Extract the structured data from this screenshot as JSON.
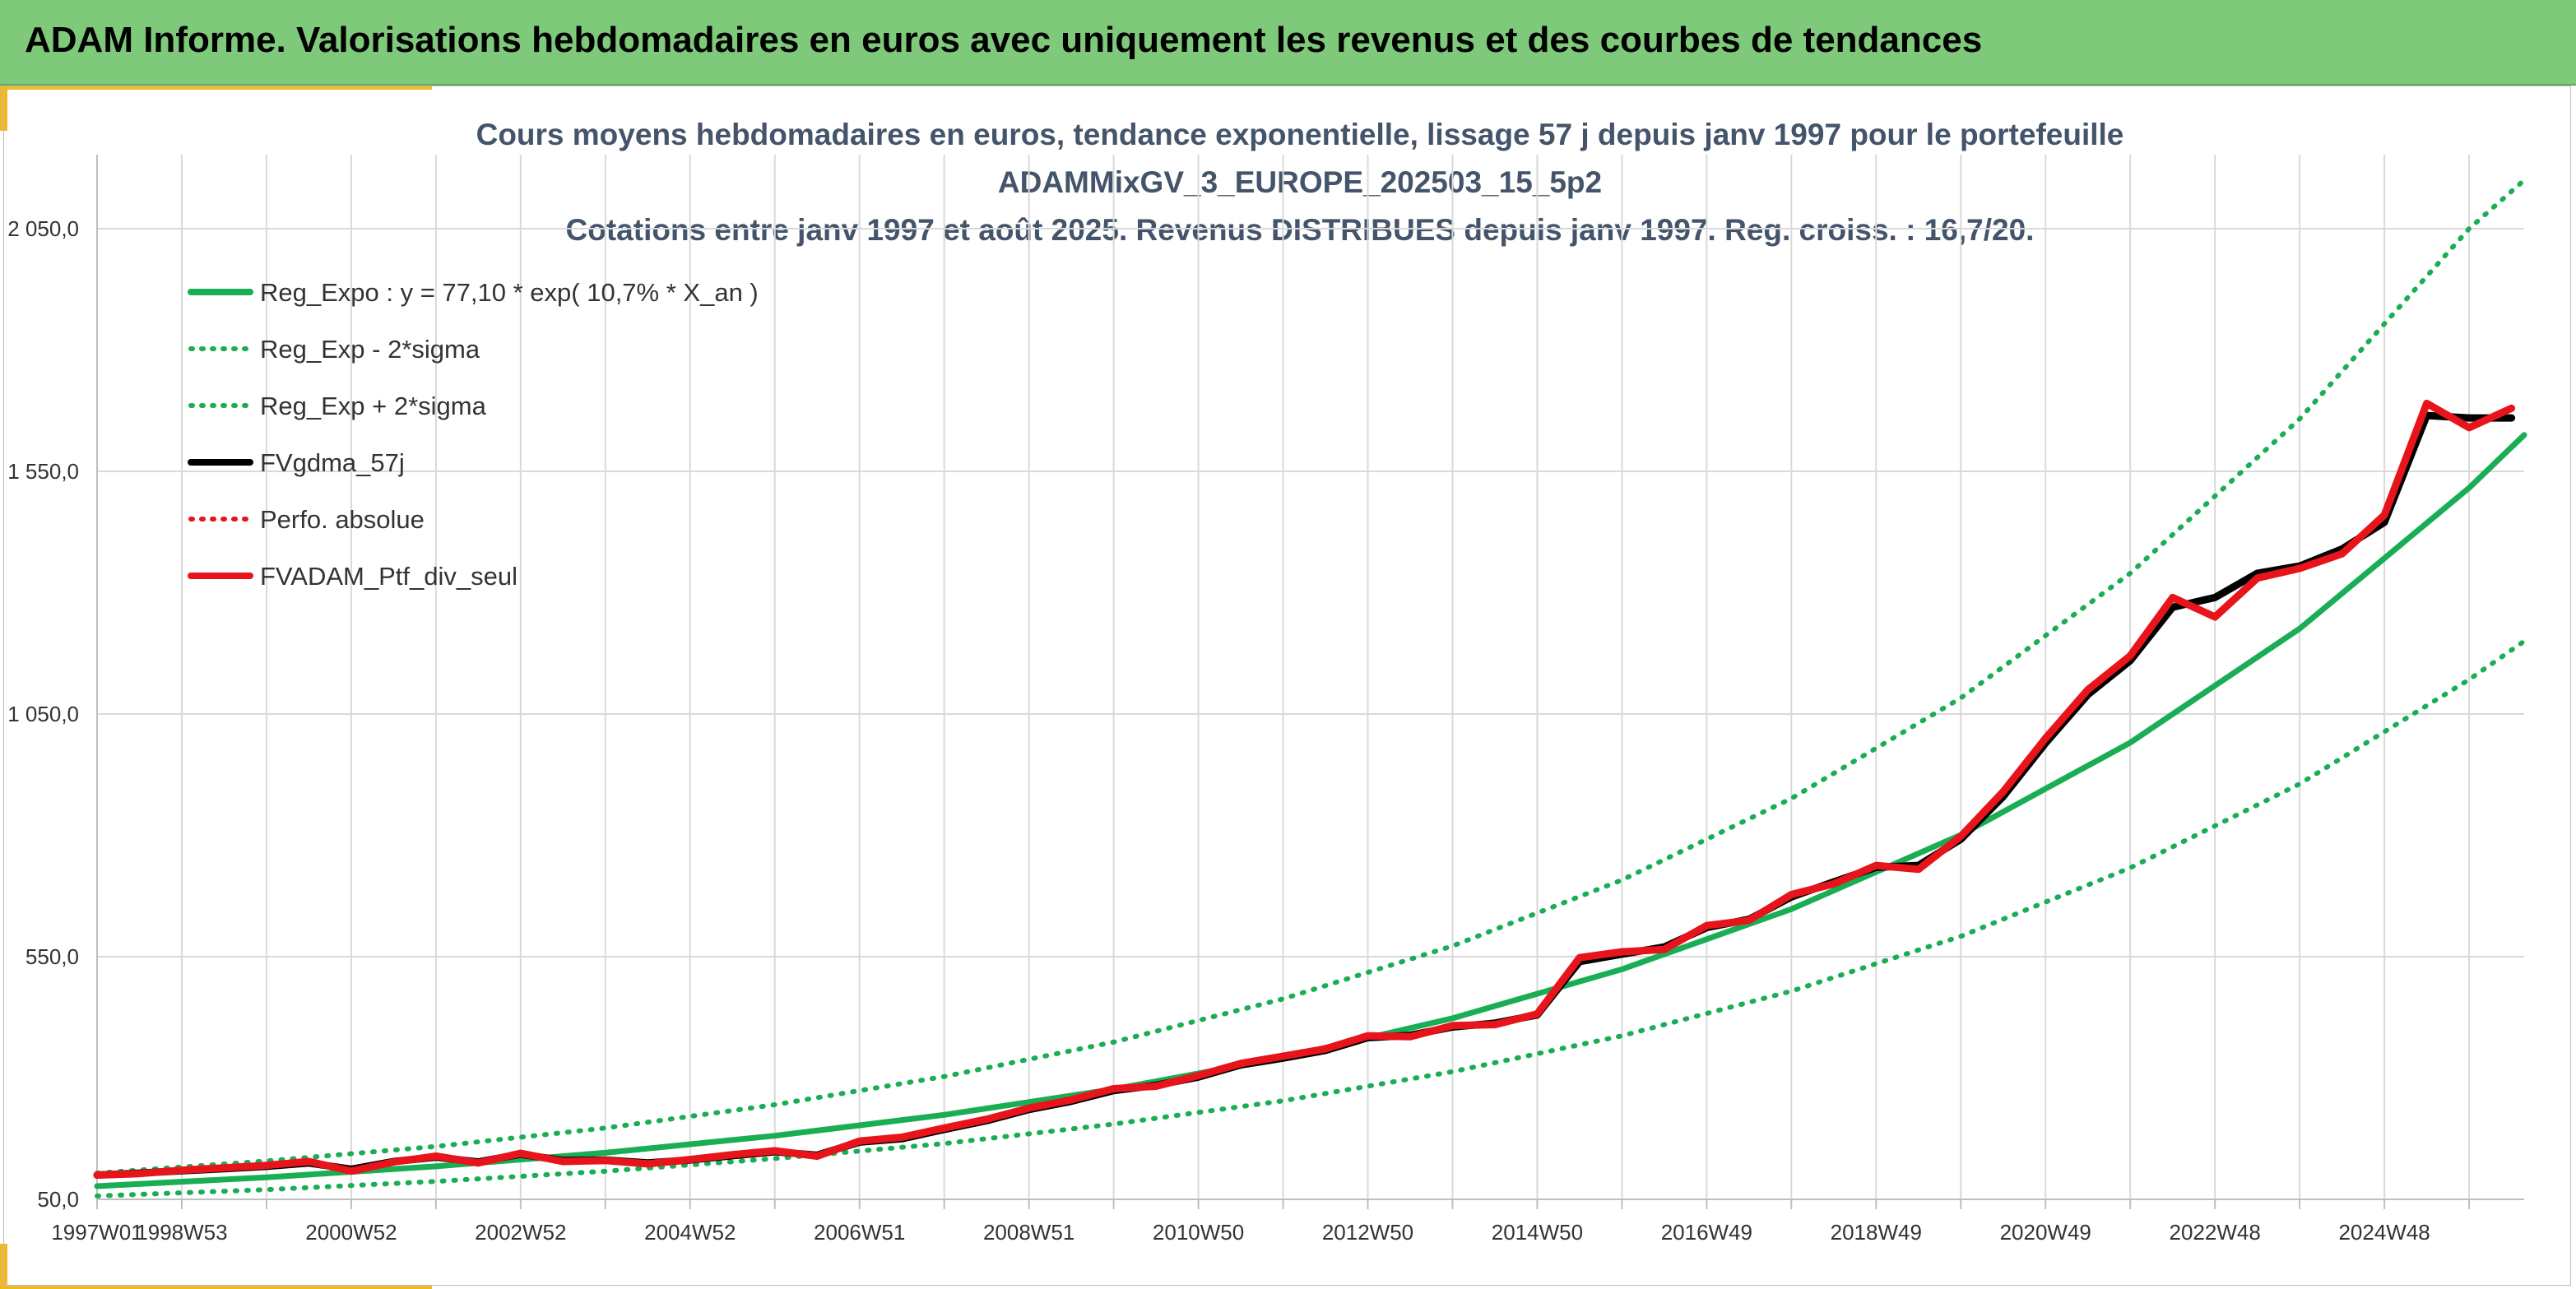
{
  "header": {
    "title": "ADAM Informe. Valorisations hebdomadaires en euros avec uniquement les revenus et des courbes de tendances"
  },
  "colors": {
    "header_bg": "#7fc97a",
    "accent_corner": "#f2b824",
    "trend_green": "#1aae54",
    "ptf_red": "#e8141c",
    "mma_black": "#000000"
  },
  "chart_data": {
    "type": "line",
    "title_lines": [
      "Cours moyens hebdomadaires en euros, tendance exponentielle, lissage 57 j depuis janv 1997 pour le portefeuille",
      "ADAMMixGV_3_EUROPE_202503_15_5p2",
      "Cotations entre janv 1997 et août 2025. Revenus DISTRIBUES depuis janv 1997. Reg. croiss. : 16,7/20."
    ],
    "xlabel": "",
    "ylabel": "",
    "x_range": [
      1997.0,
      2025.65
    ],
    "ylim": [
      50,
      2050
    ],
    "y_ticks": [
      {
        "value": 50,
        "label": "50,0"
      },
      {
        "value": 550,
        "label": "550,0"
      },
      {
        "value": 1050,
        "label": "1 050,0"
      },
      {
        "value": 1550,
        "label": "1 550,0"
      },
      {
        "value": 2050,
        "label": "2 050,0"
      }
    ],
    "x_ticks": [
      {
        "value": 1997.0,
        "label": "1997W01"
      },
      {
        "value": 1998.0,
        "label": "1998W53"
      },
      {
        "value": 2000.0,
        "label": "2000W52"
      },
      {
        "value": 2002.0,
        "label": "2002W52"
      },
      {
        "value": 2004.0,
        "label": "2004W52"
      },
      {
        "value": 2006.0,
        "label": "2006W51"
      },
      {
        "value": 2008.0,
        "label": "2008W51"
      },
      {
        "value": 2010.0,
        "label": "2010W50"
      },
      {
        "value": 2012.0,
        "label": "2012W50"
      },
      {
        "value": 2014.0,
        "label": "2014W50"
      },
      {
        "value": 2016.0,
        "label": "2016W49"
      },
      {
        "value": 2018.0,
        "label": "2018W49"
      },
      {
        "value": 2020.0,
        "label": "2020W49"
      },
      {
        "value": 2022.0,
        "label": "2022W48"
      },
      {
        "value": 2024.0,
        "label": "2024W48"
      }
    ],
    "x_minor_ticks": [
      1999.0,
      2001.0,
      2003.0,
      2005.0,
      2007.0,
      2009.0,
      2011.0,
      2013.0,
      2015.0,
      2017.0,
      2019.0,
      2021.0,
      2023.0,
      2025.0
    ],
    "grid": true,
    "legend": {
      "placement": "top-left",
      "entries": [
        {
          "label": "Reg_Expo : y = 77,10 * exp( 10,7% *  X_an )",
          "color": "#1aae54",
          "style": "solid"
        },
        {
          "label": "Reg_Exp - 2*sigma",
          "color": "#1aae54",
          "style": "dotted"
        },
        {
          "label": "Reg_Exp + 2*sigma",
          "color": "#1aae54",
          "style": "dotted"
        },
        {
          "label": "FVgdma_57j",
          "color": "#000000",
          "style": "solid"
        },
        {
          "label": "Perfo. absolue",
          "color": "#e8141c",
          "style": "dotted"
        },
        {
          "label": "FVADAM_Ptf_div_seul",
          "color": "#e8141c",
          "style": "solid"
        }
      ]
    },
    "series": [
      {
        "name": "Reg_Expo : y = 77,10 * exp( 10,7% *  X_an )",
        "color": "#1aae54",
        "style": "solid",
        "x": [
          1997.0,
          1999.0,
          2001.0,
          2003.0,
          2005.0,
          2007.0,
          2009.0,
          2011.0,
          2013.0,
          2015.0,
          2017.0,
          2019.0,
          2021.0,
          2023.0,
          2025.0,
          2025.65
        ],
        "y": [
          77.1,
          95.4,
          118,
          146,
          181,
          224,
          277,
          342,
          423,
          524,
          648,
          801,
          991,
          1226,
          1516,
          1625
        ]
      },
      {
        "name": "Reg_Exp - 2*sigma",
        "color": "#1aae54",
        "style": "dotted",
        "x": [
          1997.0,
          1999.0,
          2001.0,
          2003.0,
          2005.0,
          2007.0,
          2009.0,
          2011.0,
          2013.0,
          2015.0,
          2017.0,
          2019.0,
          2021.0,
          2023.0,
          2025.0,
          2025.65
        ],
        "y": [
          57,
          70,
          87,
          108,
          134,
          165,
          205,
          253,
          313,
          387,
          479,
          592,
          733,
          906,
          1121,
          1200
        ]
      },
      {
        "name": "Reg_Exp + 2*sigma",
        "color": "#1aae54",
        "style": "dotted",
        "x": [
          1997.0,
          1999.0,
          2001.0,
          2003.0,
          2005.0,
          2007.0,
          2009.0,
          2011.0,
          2013.0,
          2015.0,
          2017.0,
          2019.0,
          2021.0,
          2023.0,
          2025.0,
          2025.65
        ],
        "y": [
          104,
          129,
          159,
          197,
          245,
          303,
          374,
          463,
          572,
          708,
          876,
          1083,
          1340,
          1658,
          2050,
          2150
        ]
      },
      {
        "name": "FVgdma_57j",
        "color": "#000000",
        "style": "solid",
        "x": [
          1997.0,
          1997.5,
          1998.0,
          1998.5,
          1999.0,
          1999.5,
          2000.0,
          2000.5,
          2001.0,
          2001.5,
          2002.0,
          2002.5,
          2003.0,
          2003.5,
          2004.0,
          2004.5,
          2005.0,
          2005.5,
          2006.0,
          2006.5,
          2007.0,
          2007.5,
          2008.0,
          2008.5,
          2009.0,
          2009.5,
          2010.0,
          2010.5,
          2011.0,
          2011.5,
          2012.0,
          2012.5,
          2013.0,
          2013.5,
          2014.0,
          2014.5,
          2015.0,
          2015.5,
          2016.0,
          2016.5,
          2017.0,
          2017.5,
          2018.0,
          2018.5,
          2019.0,
          2019.5,
          2020.0,
          2020.5,
          2021.0,
          2021.5,
          2022.0,
          2022.5,
          2023.0,
          2023.5,
          2024.0,
          2024.5,
          2025.0,
          2025.5
        ],
        "y": [
          100,
          104,
          109,
          113,
          118,
          125,
          112,
          128,
          137,
          127,
          143,
          130,
          131,
          125,
          131,
          140,
          148,
          141,
          168,
          175,
          194,
          212,
          235,
          252,
          274,
          285,
          302,
          327,
          341,
          357,
          383,
          388,
          405,
          413,
          430,
          540,
          555,
          570,
          610,
          627,
          673,
          704,
          734,
          738,
          792,
          880,
          990,
          1090,
          1160,
          1270,
          1290,
          1340,
          1355,
          1390,
          1445,
          1665,
          1660,
          1660
        ]
      },
      {
        "name": "FVADAM_Ptf_div_seul",
        "color": "#e8141c",
        "style": "solid",
        "x": [
          1997.0,
          1997.5,
          1998.0,
          1998.5,
          1999.0,
          1999.5,
          2000.0,
          2000.5,
          2001.0,
          2001.5,
          2002.0,
          2002.5,
          2003.0,
          2003.5,
          2004.0,
          2004.5,
          2005.0,
          2005.5,
          2006.0,
          2006.5,
          2007.0,
          2007.5,
          2008.0,
          2008.5,
          2009.0,
          2009.5,
          2010.0,
          2010.5,
          2011.0,
          2011.5,
          2012.0,
          2012.5,
          2013.0,
          2013.5,
          2014.0,
          2014.5,
          2015.0,
          2015.5,
          2016.0,
          2016.5,
          2017.0,
          2017.5,
          2018.0,
          2018.5,
          2019.0,
          2019.5,
          2020.0,
          2020.5,
          2021.0,
          2021.5,
          2022.0,
          2022.5,
          2023.0,
          2023.5,
          2024.0,
          2024.5,
          2025.0,
          2025.5
        ],
        "y": [
          100,
          103,
          110,
          115,
          120,
          128,
          108,
          127,
          139,
          125,
          145,
          128,
          130,
          123,
          132,
          142,
          150,
          139,
          170,
          178,
          197,
          215,
          238,
          255,
          278,
          283,
          305,
          330,
          345,
          360,
          387,
          385,
          408,
          410,
          432,
          548,
          560,
          565,
          614,
          625,
          678,
          700,
          738,
          730,
          798,
          890,
          1000,
          1100,
          1170,
          1290,
          1250,
          1330,
          1350,
          1380,
          1460,
          1690,
          1640,
          1680
        ]
      }
    ]
  }
}
